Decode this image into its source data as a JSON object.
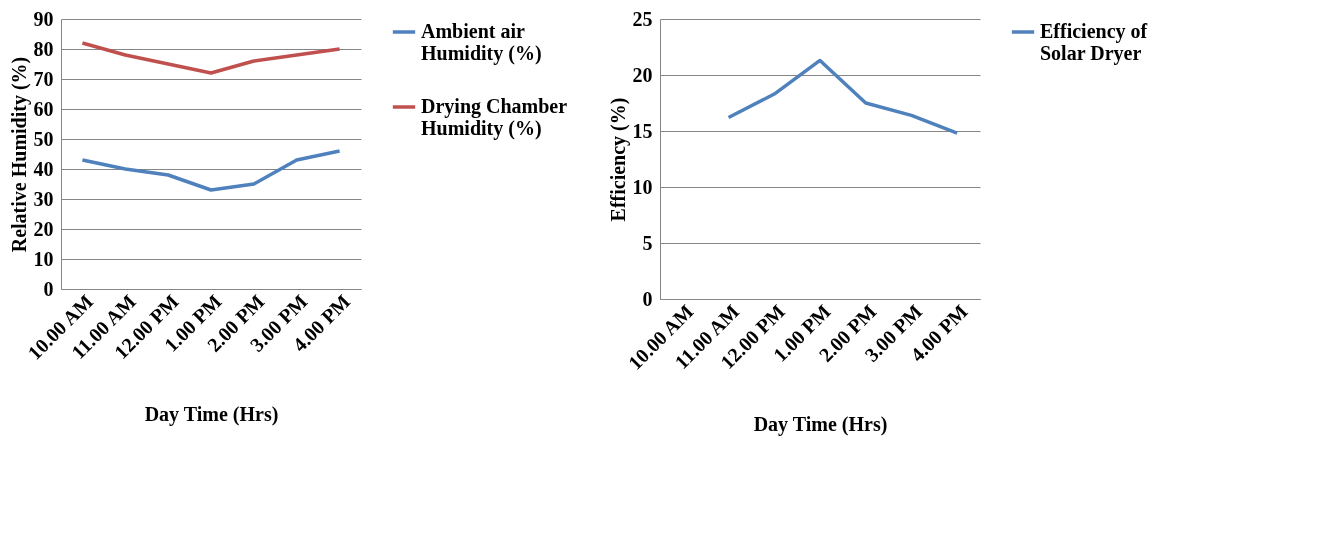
{
  "chart_data": [
    {
      "type": "line",
      "xlabel": "Day Time (Hrs)",
      "ylabel": "Relative Humidity (%)",
      "categories": [
        "10.00 AM",
        "11.00 AM",
        "12.00 PM",
        "1.00 PM",
        "2.00 PM",
        "3.00 PM",
        "4.00 PM"
      ],
      "ylim": [
        0,
        90
      ],
      "yticks": [
        0,
        10,
        20,
        30,
        40,
        50,
        60,
        70,
        80,
        90
      ],
      "grid": "y",
      "legend": "right",
      "marker": "none",
      "series": [
        {
          "name": "Ambient air Humidity (%)",
          "color": "#4f81bd",
          "values": [
            43,
            40,
            38,
            33,
            35,
            43,
            46
          ]
        },
        {
          "name": "Drying Chamber Humidity (%)",
          "color": "#c0504d",
          "values": [
            82,
            78,
            75,
            72,
            76,
            78,
            80
          ]
        }
      ]
    },
    {
      "type": "line",
      "xlabel": "Day Time (Hrs)",
      "ylabel": "Efficiency (%)",
      "categories": [
        "10.00 AM",
        "11.00 AM",
        "12.00 PM",
        "1.00 PM",
        "2.00 PM",
        "3.00 PM",
        "4.00 PM"
      ],
      "ylim": [
        0,
        25
      ],
      "yticks": [
        0,
        5,
        10,
        15,
        20,
        25
      ],
      "grid": "y",
      "legend": "right",
      "marker": "none",
      "series": [
        {
          "name": "Efficiency of Solar Dryer",
          "color": "#4f81bd",
          "values": [
            null,
            16.2,
            18.3,
            21.3,
            17.5,
            16.4,
            14.8
          ]
        }
      ]
    }
  ]
}
